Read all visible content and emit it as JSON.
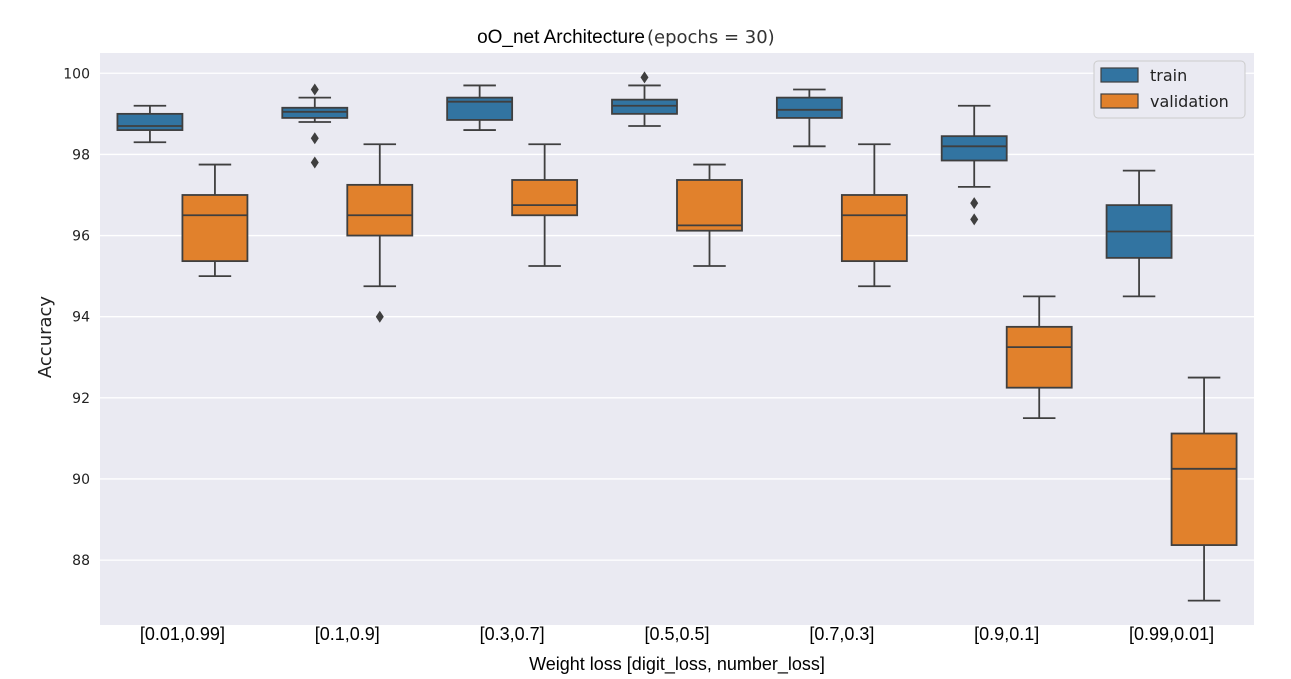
{
  "chart_data": {
    "type": "box",
    "title": "oO_net Architecture",
    "subtitle": "(epochs = 30)",
    "xlabel": "Weight loss [digit_loss, number_loss]",
    "ylabel": "Accuracy",
    "ylim": [
      86.4,
      100.5
    ],
    "yticks": [
      88,
      90,
      92,
      94,
      96,
      98,
      100
    ],
    "grid": true,
    "legend_position": "top-right",
    "categories": [
      "[0.01,0.99]",
      "[0.1,0.9]",
      "[0.3,0.7]",
      "[0.5,0.5]",
      "[0.7,0.3]",
      "[0.9,0.1]",
      "[0.99,0.01]"
    ],
    "series": [
      {
        "name": "train",
        "color": "#3274a1",
        "boxes": [
          {
            "whislo": 98.3,
            "q1": 98.6,
            "med": 98.7,
            "q3": 99.0,
            "whishi": 99.2,
            "fliers": []
          },
          {
            "whislo": 98.8,
            "q1": 98.9,
            "med": 99.05,
            "q3": 99.15,
            "whishi": 99.4,
            "fliers": [
              99.6,
              98.4,
              97.8
            ]
          },
          {
            "whislo": 98.6,
            "q1": 98.85,
            "med": 99.3,
            "q3": 99.4,
            "whishi": 99.7,
            "fliers": []
          },
          {
            "whislo": 98.7,
            "q1": 99.0,
            "med": 99.2,
            "q3": 99.35,
            "whishi": 99.7,
            "fliers": [
              99.9
            ]
          },
          {
            "whislo": 98.2,
            "q1": 98.9,
            "med": 99.1,
            "q3": 99.4,
            "whishi": 99.6,
            "fliers": []
          },
          {
            "whislo": 97.2,
            "q1": 97.85,
            "med": 98.2,
            "q3": 98.45,
            "whishi": 99.2,
            "fliers": [
              96.8,
              96.4
            ]
          },
          {
            "whislo": 94.5,
            "q1": 95.45,
            "med": 96.1,
            "q3": 96.75,
            "whishi": 97.6,
            "fliers": []
          }
        ]
      },
      {
        "name": "validation",
        "color": "#e1812c",
        "boxes": [
          {
            "whislo": 95.0,
            "q1": 95.37,
            "med": 96.5,
            "q3": 97.0,
            "whishi": 97.75,
            "fliers": []
          },
          {
            "whislo": 94.75,
            "q1": 96.0,
            "med": 96.5,
            "q3": 97.25,
            "whishi": 98.25,
            "fliers": [
              94.0
            ]
          },
          {
            "whislo": 95.25,
            "q1": 96.5,
            "med": 96.75,
            "q3": 97.37,
            "whishi": 98.25,
            "fliers": []
          },
          {
            "whislo": 95.25,
            "q1": 96.12,
            "med": 96.25,
            "q3": 97.37,
            "whishi": 97.75,
            "fliers": []
          },
          {
            "whislo": 94.75,
            "q1": 95.37,
            "med": 96.5,
            "q3": 97.0,
            "whishi": 98.25,
            "fliers": []
          },
          {
            "whislo": 91.5,
            "q1": 92.25,
            "med": 93.25,
            "q3": 93.75,
            "whishi": 94.5,
            "fliers": []
          },
          {
            "whislo": 87.0,
            "q1": 88.37,
            "med": 90.25,
            "q3": 91.12,
            "whishi": 92.5,
            "fliers": []
          }
        ]
      }
    ]
  }
}
